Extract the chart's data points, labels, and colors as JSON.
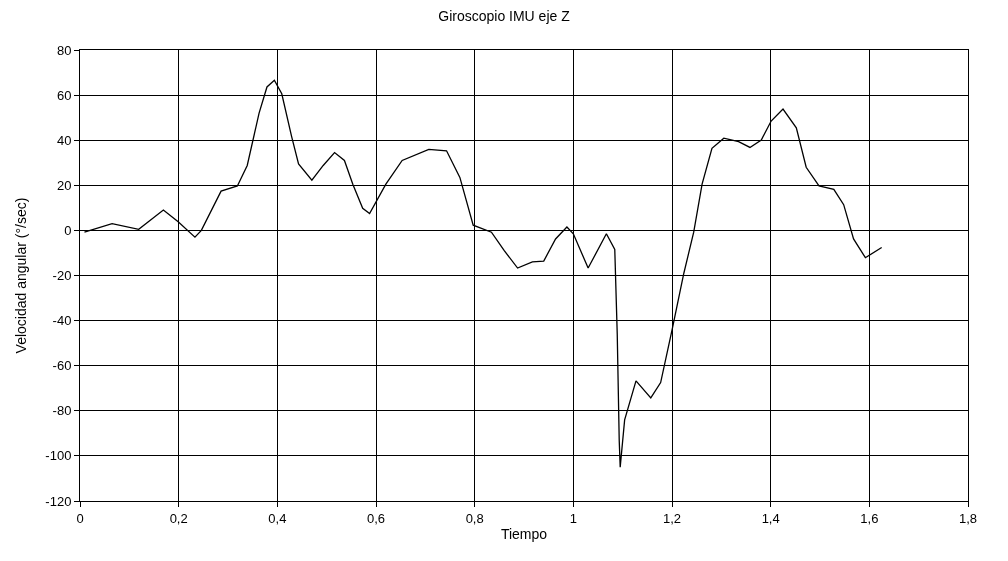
{
  "chart_data": {
    "type": "line",
    "title": "Giroscopio IMU eje Z",
    "xlabel": "Tiempo",
    "ylabel": "Velocidad angular (°/sec)",
    "x": [
      0.009,
      0.065,
      0.119,
      0.169,
      0.199,
      0.233,
      0.246,
      0.286,
      0.319,
      0.339,
      0.363,
      0.379,
      0.394,
      0.409,
      0.429,
      0.443,
      0.47,
      0.493,
      0.516,
      0.536,
      0.553,
      0.573,
      0.587,
      0.62,
      0.653,
      0.707,
      0.743,
      0.77,
      0.797,
      0.834,
      0.86,
      0.887,
      0.917,
      0.94,
      0.964,
      0.987,
      1.0,
      1.03,
      1.067,
      1.084,
      1.089,
      1.093,
      1.095,
      1.104,
      1.127,
      1.157,
      1.177,
      1.201,
      1.224,
      1.244,
      1.261,
      1.281,
      1.305,
      1.335,
      1.358,
      1.381,
      1.401,
      1.425,
      1.452,
      1.472,
      1.498,
      1.528,
      1.548,
      1.568,
      1.592,
      1.625
    ],
    "series": [
      {
        "color": "#000000",
        "values": [
          -0.8,
          3,
          0.5,
          9,
          3.8,
          -3,
          0,
          17.4,
          19.7,
          28.8,
          52,
          63.6,
          66.6,
          60.6,
          41.6,
          29.5,
          22.3,
          28.8,
          34.5,
          31,
          20.5,
          9.8,
          7.5,
          20.5,
          31,
          35.9,
          35.3,
          23.5,
          2.3,
          -0.8,
          -9,
          -16.7,
          -14,
          -13.6,
          -3.8,
          1.5,
          -1.5,
          -16.7,
          -1.5,
          -8.4,
          -46,
          -93,
          -105,
          -84,
          -66.7,
          -74.3,
          -67.5,
          -43.2,
          -19,
          -0.8,
          20.5,
          36.4,
          40.9,
          39.4,
          36.8,
          40.1,
          48.5,
          53.8,
          45.5,
          28,
          19.7,
          18.2,
          11.4,
          -3.8,
          -12.1,
          -7.6
        ]
      }
    ],
    "xlim": [
      0,
      1.8
    ],
    "xticks": [
      0,
      {
        "value": 0.2,
        "label": "0,2"
      },
      {
        "value": 0.4,
        "label": "0,4"
      },
      {
        "value": 0.6,
        "label": "0,6"
      },
      {
        "value": 0.8,
        "label": "0,8"
      },
      1,
      {
        "value": 1.2,
        "label": "1,2"
      },
      {
        "value": 1.4,
        "label": "1,4"
      },
      {
        "value": 1.6,
        "label": "1,6"
      },
      {
        "value": 1.8,
        "label": "1,8"
      }
    ],
    "ylim": [
      -120,
      80
    ],
    "yticks": [
      -120,
      -100,
      -80,
      -60,
      -40,
      -20,
      0,
      20,
      40,
      60,
      80
    ],
    "grid": true,
    "marker": "none",
    "line_style": "solid"
  }
}
